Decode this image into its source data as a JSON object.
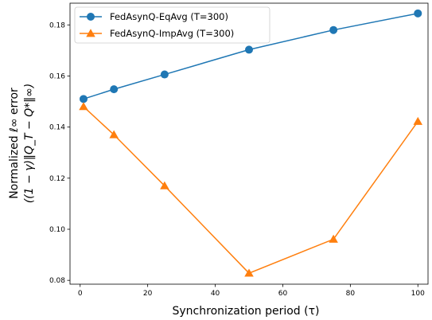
{
  "chart_data": {
    "type": "line",
    "title": "",
    "xlabel": "Synchronization period (τ)",
    "ylabel_line1": "Normalized ℓ∞ error",
    "ylabel_line2": "((1 − γ)‖Q_T − Q*‖∞)",
    "xlim": [
      -3,
      103
    ],
    "ylim": [
      0.0785,
      0.1885
    ],
    "xticks": [
      0,
      20,
      40,
      60,
      80,
      100
    ],
    "xtick_labels": [
      "0",
      "20",
      "40",
      "60",
      "80",
      "100"
    ],
    "yticks": [
      0.08,
      0.1,
      0.12,
      0.14,
      0.16,
      0.18
    ],
    "ytick_labels": [
      "0.08",
      "0.10",
      "0.12",
      "0.14",
      "0.16",
      "0.18"
    ],
    "grid": false,
    "legend_position": "top-left",
    "series": [
      {
        "name": "FedAsynQ-EqAvg (T=300)",
        "color": "#1f77b4",
        "marker": "circle",
        "x": [
          1,
          10,
          25,
          50,
          75,
          100
        ],
        "values": [
          0.151,
          0.1548,
          0.1606,
          0.1703,
          0.178,
          0.1845
        ]
      },
      {
        "name": "FedAsynQ-ImpAvg (T=300)",
        "color": "#ff7f0e",
        "marker": "triangle",
        "x": [
          1,
          10,
          25,
          50,
          75,
          100
        ],
        "values": [
          0.148,
          0.137,
          0.117,
          0.0828,
          0.0961,
          0.1422
        ]
      }
    ]
  }
}
